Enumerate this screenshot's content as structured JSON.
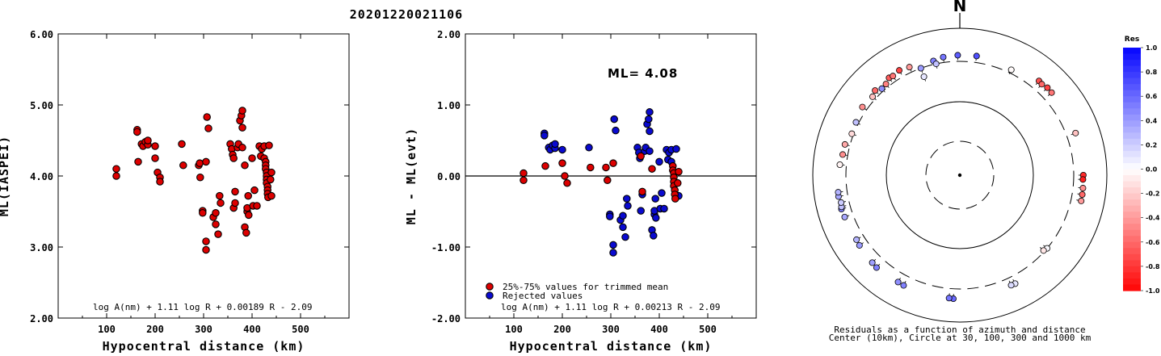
{
  "title": "20201220021106",
  "colors": {
    "accepted": "#dd0000",
    "rejected": "#0a0ad0",
    "outline": "#000000"
  },
  "chart_data": [
    {
      "type": "scatter",
      "title": "",
      "xlabel": "Hypocentral distance (km)",
      "ylabel": "ML(IASPEI)",
      "xlim": [
        0,
        600
      ],
      "ylim": [
        2.0,
        6.0
      ],
      "xticks": [
        "100",
        "200",
        "300",
        "400",
        "500"
      ],
      "xtick_values": [
        100,
        200,
        300,
        400,
        500
      ],
      "yticks": [
        "2.00",
        "3.00",
        "4.00",
        "5.00",
        "6.00"
      ],
      "ytick_values": [
        2,
        3,
        4,
        5,
        6
      ],
      "formula": "log A(nm) + 1.11 log R + 0.00189 R - 2.09",
      "points": [
        [
          120,
          4.1
        ],
        [
          120,
          4.0
        ],
        [
          163,
          4.65
        ],
        [
          163,
          4.62
        ],
        [
          165,
          4.2
        ],
        [
          172,
          4.45
        ],
        [
          175,
          4.42
        ],
        [
          180,
          4.48
        ],
        [
          185,
          4.44
        ],
        [
          185,
          4.5
        ],
        [
          200,
          4.42
        ],
        [
          200,
          4.25
        ],
        [
          205,
          4.05
        ],
        [
          210,
          3.98
        ],
        [
          210,
          3.92
        ],
        [
          255,
          4.45
        ],
        [
          258,
          4.15
        ],
        [
          290,
          4.15
        ],
        [
          292,
          4.18
        ],
        [
          293,
          3.98
        ],
        [
          298,
          3.51
        ],
        [
          298,
          3.48
        ],
        [
          305,
          3.08
        ],
        [
          305,
          2.96
        ],
        [
          305,
          4.2
        ],
        [
          307,
          4.83
        ],
        [
          310,
          4.67
        ],
        [
          320,
          3.42
        ],
        [
          325,
          3.48
        ],
        [
          325,
          3.32
        ],
        [
          330,
          3.18
        ],
        [
          333,
          3.72
        ],
        [
          335,
          3.62
        ],
        [
          355,
          4.45
        ],
        [
          358,
          4.38
        ],
        [
          360,
          4.3
        ],
        [
          362,
          4.25
        ],
        [
          362,
          3.55
        ],
        [
          365,
          3.62
        ],
        [
          365,
          3.78
        ],
        [
          370,
          4.4
        ],
        [
          372,
          4.45
        ],
        [
          375,
          4.78
        ],
        [
          378,
          4.85
        ],
        [
          380,
          4.92
        ],
        [
          380,
          4.68
        ],
        [
          380,
          4.4
        ],
        [
          385,
          4.15
        ],
        [
          385,
          3.28
        ],
        [
          388,
          3.2
        ],
        [
          390,
          3.5
        ],
        [
          390,
          3.55
        ],
        [
          392,
          3.72
        ],
        [
          393,
          3.45
        ],
        [
          400,
          4.25
        ],
        [
          402,
          3.58
        ],
        [
          405,
          3.8
        ],
        [
          410,
          3.58
        ],
        [
          415,
          4.42
        ],
        [
          418,
          4.28
        ],
        [
          420,
          4.38
        ],
        [
          425,
          4.42
        ],
        [
          425,
          4.25
        ],
        [
          428,
          4.2
        ],
        [
          428,
          4.15
        ],
        [
          428,
          4.1
        ],
        [
          430,
          4.05
        ],
        [
          430,
          4.0
        ],
        [
          430,
          3.95
        ],
        [
          430,
          3.9
        ],
        [
          432,
          3.85
        ],
        [
          432,
          3.8
        ],
        [
          432,
          3.75
        ],
        [
          433,
          3.7
        ],
        [
          435,
          4.43
        ],
        [
          438,
          3.95
        ],
        [
          440,
          4.05
        ],
        [
          440,
          3.72
        ]
      ]
    },
    {
      "type": "scatter",
      "title": "",
      "xlabel": "Hypocentral distance (km)",
      "ylabel": "ML - ML(evt)",
      "xlim": [
        0,
        600
      ],
      "ylim": [
        -2.0,
        2.0
      ],
      "xticks": [
        "100",
        "200",
        "300",
        "400",
        "500"
      ],
      "xtick_values": [
        100,
        200,
        300,
        400,
        500
      ],
      "yticks": [
        "-2.00",
        "-1.00",
        "0.00",
        "1.00",
        "2.00"
      ],
      "ytick_values": [
        -2,
        -1,
        0,
        1,
        2
      ],
      "annotation": "ML= 4.08",
      "formula": "log A(nm) + 1.11 log R + 0.00213 R - 2.09",
      "legend": [
        {
          "label": "25%-75% values for trimmed mean",
          "color": "#dd0000"
        },
        {
          "label": "Rejected values",
          "color": "#0a0ad0"
        }
      ],
      "series": [
        {
          "name": "25%-75% values for trimmed mean",
          "points": [
            [
              120,
              0.04
            ],
            [
              120,
              -0.06
            ],
            [
              165,
              0.14
            ],
            [
              200,
              0.18
            ],
            [
              205,
              0.0
            ],
            [
              210,
              -0.1
            ],
            [
              258,
              0.12
            ],
            [
              290,
              0.12
            ],
            [
              293,
              -0.06
            ],
            [
              305,
              0.18
            ],
            [
              362,
              0.28
            ],
            [
              365,
              -0.22
            ],
            [
              385,
              0.1
            ],
            [
              428,
              0.14
            ],
            [
              428,
              0.08
            ],
            [
              430,
              0.04
            ],
            [
              430,
              -0.02
            ],
            [
              430,
              -0.08
            ],
            [
              430,
              -0.14
            ],
            [
              432,
              -0.2
            ],
            [
              432,
              -0.26
            ],
            [
              433,
              -0.32
            ],
            [
              438,
              -0.1
            ],
            [
              440,
              0.06
            ]
          ]
        },
        {
          "name": "Rejected values",
          "points": [
            [
              163,
              0.6
            ],
            [
              163,
              0.57
            ],
            [
              172,
              0.4
            ],
            [
              175,
              0.37
            ],
            [
              180,
              0.43
            ],
            [
              185,
              0.39
            ],
            [
              185,
              0.45
            ],
            [
              200,
              0.37
            ],
            [
              255,
              0.4
            ],
            [
              298,
              -0.54
            ],
            [
              298,
              -0.57
            ],
            [
              305,
              -0.97
            ],
            [
              305,
              -1.08
            ],
            [
              307,
              0.8
            ],
            [
              310,
              0.64
            ],
            [
              320,
              -0.62
            ],
            [
              325,
              -0.56
            ],
            [
              325,
              -0.72
            ],
            [
              330,
              -0.86
            ],
            [
              333,
              -0.32
            ],
            [
              335,
              -0.42
            ],
            [
              355,
              0.4
            ],
            [
              358,
              0.33
            ],
            [
              360,
              0.25
            ],
            [
              362,
              -0.49
            ],
            [
              365,
              -0.26
            ],
            [
              370,
              0.35
            ],
            [
              372,
              0.4
            ],
            [
              375,
              0.73
            ],
            [
              378,
              0.8
            ],
            [
              380,
              0.9
            ],
            [
              380,
              0.63
            ],
            [
              380,
              0.35
            ],
            [
              385,
              -0.76
            ],
            [
              388,
              -0.84
            ],
            [
              390,
              -0.54
            ],
            [
              390,
              -0.49
            ],
            [
              392,
              -0.32
            ],
            [
              393,
              -0.59
            ],
            [
              400,
              0.2
            ],
            [
              402,
              -0.46
            ],
            [
              405,
              -0.24
            ],
            [
              410,
              -0.46
            ],
            [
              415,
              0.37
            ],
            [
              418,
              0.23
            ],
            [
              420,
              0.33
            ],
            [
              425,
              0.37
            ],
            [
              425,
              0.2
            ],
            [
              435,
              0.38
            ],
            [
              440,
              -0.28
            ]
          ]
        }
      ]
    },
    {
      "type": "polar",
      "title": "",
      "north_label": "N",
      "caption_lines": [
        "Residuals as a function of azimuth and distance",
        "Center (10km), Circle at 30, 100, 300 and 1000 km"
      ],
      "rings_km": [
        10,
        30,
        100,
        300,
        1000
      ],
      "ring_styles": [
        "dashed",
        "solid",
        "dashed",
        "solid"
      ],
      "colorbar": {
        "title": "Res",
        "range": [
          -1.0,
          1.0
        ],
        "tick_labels": [
          "1.0",
          "0.8",
          "0.6",
          "0.4",
          "0.2",
          "0.0",
          "-0.2",
          "-0.4",
          "-0.6",
          "-0.8",
          "-1.0"
        ],
        "tick_values": [
          1.0,
          0.8,
          0.6,
          0.4,
          0.2,
          0.0,
          -0.2,
          -0.4,
          -0.6,
          -0.8,
          -1.0
        ]
      },
      "points_az_dist_res": [
        [
          352,
          365,
          0.55
        ],
        [
          359,
          375,
          0.65
        ],
        [
          8,
          380,
          0.7
        ],
        [
          26,
          340,
          -0.02
        ],
        [
          40,
          420,
          -0.7
        ],
        [
          42,
          410,
          -0.6
        ],
        [
          45,
          430,
          -0.75
        ],
        [
          48,
          425,
          -0.55
        ],
        [
          70,
          420,
          -0.25
        ],
        [
          90,
          425,
          -0.85
        ],
        [
          92,
          420,
          -0.9
        ],
        [
          96,
          430,
          -0.45
        ],
        [
          99,
          432,
          -0.6
        ],
        [
          102,
          434,
          -0.4
        ],
        [
          130,
          300,
          0.02
        ],
        [
          132,
          290,
          -0.1
        ],
        [
          153,
          400,
          0.1
        ],
        [
          155,
          395,
          0.15
        ],
        [
          183,
          430,
          0.6
        ],
        [
          185,
          425,
          0.55
        ],
        [
          207,
          430,
          0.5
        ],
        [
          210,
          425,
          0.45
        ],
        [
          222,
          440,
          0.5
        ],
        [
          225,
          430,
          0.38
        ],
        [
          235,
          410,
          0.4
        ],
        [
          238,
          400,
          0.3
        ],
        [
          250,
          410,
          0.35
        ],
        [
          254,
          420,
          0.5
        ],
        [
          255,
          410,
          0.25
        ],
        [
          257,
          400,
          0.2
        ],
        [
          260,
          420,
          0.35
        ],
        [
          262,
          415,
          0.3
        ],
        [
          275,
          380,
          -0.05
        ],
        [
          280,
          360,
          -0.45
        ],
        [
          285,
          360,
          -0.35
        ],
        [
          291,
          320,
          -0.15
        ],
        [
          297,
          330,
          0.25
        ],
        [
          305,
          360,
          -0.45
        ],
        [
          312,
          340,
          -0.25
        ],
        [
          315,
          372,
          -0.6
        ],
        [
          318,
          330,
          0.45
        ],
        [
          321,
          340,
          -0.5
        ],
        [
          324,
          380,
          -0.65
        ],
        [
          326,
          370,
          -0.55
        ],
        [
          330,
          390,
          -0.75
        ],
        [
          335,
          365,
          -0.4
        ],
        [
          340,
          300,
          0.4
        ],
        [
          347,
          340,
          0.5
        ],
        [
          340,
          235,
          0.1
        ],
        [
          348,
          300,
          0.25
        ]
      ]
    }
  ]
}
